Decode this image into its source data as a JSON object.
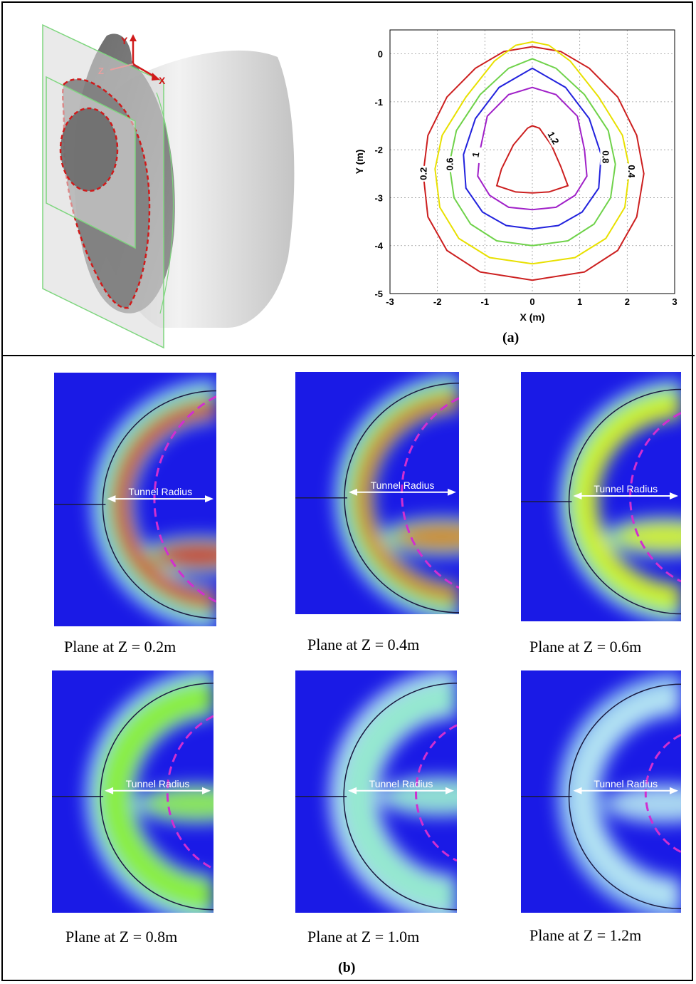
{
  "figure": {
    "panel_a_label": "(a)",
    "panel_b_label": "(b)"
  },
  "model_3d": {
    "axis_labels": {
      "y": "Y",
      "x": "X",
      "z": "Z"
    }
  },
  "contour_plot": {
    "xlabel": "X (m)",
    "ylabel": "Y (m)",
    "x_ticks": [
      "-3",
      "-2",
      "-1",
      "0",
      "1",
      "2",
      "3"
    ],
    "y_ticks": [
      "0",
      "-1",
      "-2",
      "-3",
      "-4",
      "-5"
    ]
  },
  "chart_data": {
    "type": "contour",
    "xlabel": "X (m)",
    "ylabel": "Y (m)",
    "xlim": [
      -3,
      3
    ],
    "ylim": [
      -5,
      0.5
    ],
    "grid": true,
    "contours": [
      {
        "level": "0.2",
        "color": "#cc1f1f",
        "points": [
          [
            -2.3,
            -2.5
          ],
          [
            -2.2,
            -1.7
          ],
          [
            -1.8,
            -0.9
          ],
          [
            -1.2,
            -0.3
          ],
          [
            -0.6,
            0.05
          ],
          [
            0,
            0.15
          ],
          [
            0.6,
            0.05
          ],
          [
            1.2,
            -0.3
          ],
          [
            1.8,
            -0.9
          ],
          [
            2.2,
            -1.7
          ],
          [
            2.35,
            -2.5
          ],
          [
            2.2,
            -3.4
          ],
          [
            1.8,
            -4.1
          ],
          [
            1.1,
            -4.55
          ],
          [
            0,
            -4.72
          ],
          [
            -1.1,
            -4.55
          ],
          [
            -1.8,
            -4.1
          ],
          [
            -2.2,
            -3.4
          ],
          [
            -2.3,
            -2.5
          ]
        ],
        "closed": true
      },
      {
        "level": "0.4",
        "color": "#e8e000",
        "points": [
          [
            -2.05,
            -2.4
          ],
          [
            -1.9,
            -1.7
          ],
          [
            -1.4,
            -0.9
          ],
          [
            -0.8,
            -0.15
          ],
          [
            -0.35,
            0.18
          ],
          [
            0,
            0.25
          ],
          [
            0.35,
            0.18
          ],
          [
            0.8,
            -0.15
          ],
          [
            1.4,
            -0.9
          ],
          [
            1.9,
            -1.7
          ],
          [
            2.05,
            -2.4
          ],
          [
            1.95,
            -3.2
          ],
          [
            1.55,
            -3.85
          ],
          [
            0.9,
            -4.25
          ],
          [
            0,
            -4.38
          ],
          [
            -0.9,
            -4.25
          ],
          [
            -1.55,
            -3.85
          ],
          [
            -1.95,
            -3.2
          ],
          [
            -2.05,
            -2.4
          ]
        ],
        "closed": true
      },
      {
        "level": "0.6",
        "color": "#6fd24a",
        "points": [
          [
            -1.75,
            -2.3
          ],
          [
            -1.6,
            -1.6
          ],
          [
            -1.1,
            -0.85
          ],
          [
            -0.5,
            -0.3
          ],
          [
            0,
            -0.1
          ],
          [
            0.5,
            -0.3
          ],
          [
            1.1,
            -0.85
          ],
          [
            1.6,
            -1.6
          ],
          [
            1.75,
            -2.3
          ],
          [
            1.65,
            -3.0
          ],
          [
            1.3,
            -3.55
          ],
          [
            0.75,
            -3.9
          ],
          [
            0,
            -4.0
          ],
          [
            -0.75,
            -3.9
          ],
          [
            -1.3,
            -3.55
          ],
          [
            -1.65,
            -3.0
          ],
          [
            -1.75,
            -2.3
          ]
        ],
        "closed": true
      },
      {
        "level": "1",
        "color": "#2222dd",
        "points": [
          [
            -1.45,
            -2.1
          ],
          [
            -1.2,
            -1.35
          ],
          [
            -0.7,
            -0.7
          ],
          [
            0,
            -0.3
          ],
          [
            0.7,
            -0.7
          ],
          [
            1.2,
            -1.35
          ],
          [
            1.45,
            -2.1
          ],
          [
            1.4,
            -2.8
          ],
          [
            1.05,
            -3.3
          ],
          [
            0.55,
            -3.58
          ],
          [
            0,
            -3.65
          ],
          [
            -0.55,
            -3.58
          ],
          [
            -1.05,
            -3.3
          ],
          [
            -1.4,
            -2.8
          ],
          [
            -1.45,
            -2.1
          ]
        ],
        "closed": true
      },
      {
        "level": "0.8",
        "color": "#a020c8",
        "points": [
          [
            1.1,
            -2.0
          ],
          [
            0.95,
            -1.3
          ],
          [
            0.5,
            -0.85
          ],
          [
            0,
            -0.7
          ],
          [
            -0.5,
            -0.85
          ],
          [
            -0.95,
            -1.3
          ],
          [
            -1.1,
            -2.0
          ],
          [
            -1.15,
            -2.55
          ],
          [
            -0.9,
            -2.95
          ],
          [
            -0.5,
            -3.2
          ],
          [
            0,
            -3.25
          ],
          [
            0.5,
            -3.2
          ],
          [
            0.9,
            -2.95
          ],
          [
            1.15,
            -2.55
          ],
          [
            1.1,
            -2.0
          ]
        ],
        "closed": true
      },
      {
        "level": "1.2",
        "color": "#cc1f1f",
        "points": [
          [
            -0.1,
            -1.55
          ],
          [
            -0.4,
            -1.9
          ],
          [
            -0.65,
            -2.4
          ],
          [
            -0.75,
            -2.75
          ],
          [
            -0.35,
            -2.88
          ],
          [
            0,
            -2.9
          ],
          [
            0.35,
            -2.88
          ],
          [
            0.75,
            -2.75
          ],
          [
            0.6,
            -2.35
          ],
          [
            0.4,
            -1.9
          ],
          [
            0.15,
            -1.55
          ],
          [
            0,
            -1.5
          ],
          [
            -0.1,
            -1.55
          ]
        ],
        "closed": false
      }
    ],
    "contour_labels": [
      {
        "text": "0.2",
        "x": -2.3,
        "y": -2.5,
        "rotate": -90
      },
      {
        "text": "0.6",
        "x": -1.75,
        "y": -2.3,
        "rotate": -90
      },
      {
        "text": "1",
        "x": -1.2,
        "y": -2.1,
        "rotate": -80
      },
      {
        "text": "1.2",
        "x": 0.45,
        "y": -1.75,
        "rotate": 60
      },
      {
        "text": "0.8",
        "x": 1.55,
        "y": -2.15,
        "rotate": 90
      },
      {
        "text": "0.4",
        "x": 2.1,
        "y": -2.45,
        "rotate": 90
      }
    ]
  },
  "slices": [
    {
      "caption": "Plane at Z = 0.2m",
      "arrow_label": "Tunnel Radius"
    },
    {
      "caption": "Plane at Z = 0.4m",
      "arrow_label": "Tunnel Radius"
    },
    {
      "caption": "Plane at Z = 0.6m",
      "arrow_label": "Tunnel Radius"
    },
    {
      "caption": "Plane at Z = 0.8m",
      "arrow_label": "Tunnel Radius"
    },
    {
      "caption": "Plane at Z = 1.0m",
      "arrow_label": "Tunnel Radius"
    },
    {
      "caption": "Plane at Z = 1.2m",
      "arrow_label": "Tunnel Radius"
    }
  ],
  "colors": {
    "background_field": "#1a1ae6",
    "dashed_boundary": "#d02fd0",
    "cut_outline": "#d01a1a",
    "plane_outline": "#7ed67e"
  }
}
